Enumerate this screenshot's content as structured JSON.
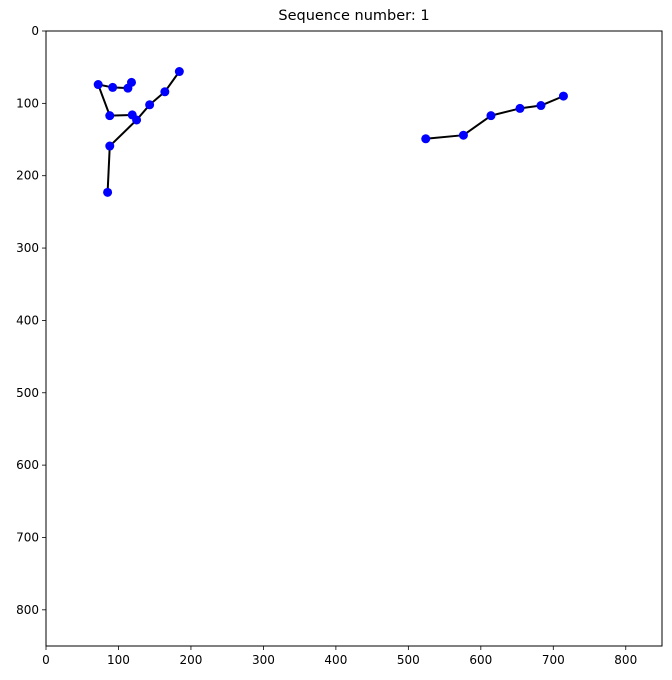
{
  "chart_data": {
    "type": "scatter",
    "title": "Sequence number: 1",
    "xlabel": "",
    "ylabel": "",
    "xlim": [
      0,
      850
    ],
    "ylim": [
      850,
      0
    ],
    "y_inverted": true,
    "grid": false,
    "legend": "none",
    "x_ticks": [
      0,
      100,
      200,
      300,
      400,
      500,
      600,
      700,
      800
    ],
    "y_ticks": [
      0,
      100,
      200,
      300,
      400,
      500,
      600,
      700,
      800
    ],
    "marker_color": "#0000ff",
    "line_color": "#000000",
    "points": [
      {
        "x": 72,
        "y": 74
      },
      {
        "x": 92,
        "y": 78
      },
      {
        "x": 113,
        "y": 79
      },
      {
        "x": 118,
        "y": 71
      },
      {
        "x": 88,
        "y": 117
      },
      {
        "x": 119,
        "y": 116
      },
      {
        "x": 125,
        "y": 123
      },
      {
        "x": 143,
        "y": 102
      },
      {
        "x": 164,
        "y": 84
      },
      {
        "x": 184,
        "y": 56
      },
      {
        "x": 88,
        "y": 159
      },
      {
        "x": 85,
        "y": 223
      },
      {
        "x": 524,
        "y": 149
      },
      {
        "x": 576,
        "y": 144
      },
      {
        "x": 614,
        "y": 117
      },
      {
        "x": 654,
        "y": 107
      },
      {
        "x": 683,
        "y": 103
      },
      {
        "x": 714,
        "y": 90
      }
    ],
    "segments": [
      [
        72,
        74,
        92,
        78
      ],
      [
        92,
        78,
        113,
        79
      ],
      [
        113,
        79,
        118,
        71
      ],
      [
        72,
        74,
        88,
        117
      ],
      [
        88,
        117,
        119,
        116
      ],
      [
        119,
        116,
        125,
        123
      ],
      [
        125,
        123,
        143,
        102
      ],
      [
        143,
        102,
        164,
        84
      ],
      [
        164,
        84,
        184,
        56
      ],
      [
        125,
        123,
        88,
        159
      ],
      [
        88,
        159,
        85,
        223
      ],
      [
        524,
        149,
        576,
        144
      ],
      [
        576,
        144,
        614,
        117
      ],
      [
        614,
        117,
        654,
        107
      ],
      [
        654,
        107,
        683,
        103
      ],
      [
        683,
        103,
        714,
        90
      ]
    ]
  }
}
